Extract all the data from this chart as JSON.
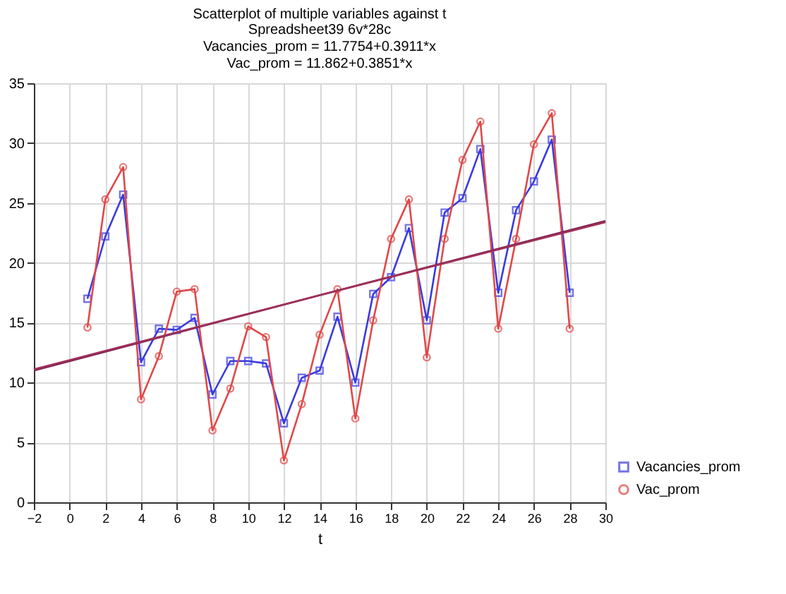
{
  "chart_data": {
    "type": "line",
    "title": "Scatterplot of multiple variables against t",
    "subtitle": "Spreadsheet39 6v*28c",
    "annotations": [
      "Vacancies_prom = 11.7754+0.3911*x",
      "Vac_prom = 11.862+0.3851*x"
    ],
    "xlabel": "t",
    "xlim": [
      -2,
      30
    ],
    "xticks": [
      -2,
      0,
      2,
      4,
      6,
      8,
      10,
      12,
      14,
      16,
      18,
      20,
      22,
      24,
      26,
      28,
      30
    ],
    "ylim": [
      0,
      35
    ],
    "yticks": [
      0,
      5,
      10,
      15,
      20,
      25,
      30,
      35
    ],
    "grid": true,
    "legend": "bottom right",
    "line_style": "solid",
    "x": [
      1,
      2,
      3,
      4,
      5,
      6,
      7,
      8,
      9,
      10,
      11,
      12,
      13,
      14,
      15,
      16,
      17,
      18,
      19,
      20,
      21,
      22,
      23,
      24,
      25,
      26,
      27,
      28
    ],
    "series": [
      {
        "name": "Vacancies_prom",
        "color": "#3a3ae0",
        "marker": "square",
        "values": [
          17,
          22.2,
          25.7,
          11.7,
          14.5,
          14.4,
          15.4,
          9,
          11.8,
          11.8,
          11.6,
          6.6,
          10.4,
          11,
          15.5,
          10,
          17.4,
          18.8,
          22.9,
          15.2,
          24.2,
          25.4,
          29.5,
          17.5,
          24.4,
          26.8,
          30.3,
          17.5
        ]
      },
      {
        "name": "Vac_prom",
        "color": "#e04848",
        "marker": "circle",
        "values": [
          14.6,
          25.3,
          28,
          8.6,
          12.2,
          17.6,
          17.8,
          6,
          9.5,
          14.7,
          13.8,
          3.5,
          8.2,
          14,
          17.8,
          7,
          15.2,
          22,
          25.3,
          12.1,
          22,
          28.6,
          31.8,
          14.5,
          22,
          29.9,
          32.5,
          14.5
        ]
      },
      {
        "type": "line",
        "color": "#7a1f50",
        "marker": "none",
        "x": [
          -2,
          14,
          30
        ],
        "values": [
          11.0,
          17.3,
          23.5
        ]
      },
      {
        "type": "line",
        "color": "#a0305a",
        "marker": "none",
        "x": [
          -2,
          14,
          30
        ],
        "values": [
          11.1,
          17.3,
          23.4
        ]
      }
    ]
  }
}
